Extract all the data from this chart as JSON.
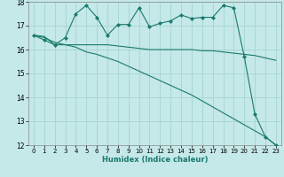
{
  "xlabel": "Humidex (Indice chaleur)",
  "background_color": "#c5e8e8",
  "grid_color": "#a8d8d0",
  "line_color": "#1a7a6e",
  "xlim": [
    -0.5,
    23.5
  ],
  "ylim": [
    12,
    18
  ],
  "yticks": [
    12,
    13,
    14,
    15,
    16,
    17,
    18
  ],
  "xticks": [
    0,
    1,
    2,
    3,
    4,
    5,
    6,
    7,
    8,
    9,
    10,
    11,
    12,
    13,
    14,
    15,
    16,
    17,
    18,
    19,
    20,
    21,
    22,
    23
  ],
  "x": [
    0,
    1,
    2,
    3,
    4,
    5,
    6,
    7,
    8,
    9,
    10,
    11,
    12,
    13,
    14,
    15,
    16,
    17,
    18,
    19,
    20,
    21,
    22,
    23
  ],
  "line1": [
    16.6,
    16.4,
    16.2,
    16.5,
    17.5,
    17.85,
    17.35,
    16.6,
    17.05,
    17.05,
    17.75,
    16.95,
    17.1,
    17.2,
    17.45,
    17.3,
    17.35,
    17.35,
    17.85,
    17.75,
    15.7,
    13.3,
    12.35,
    12.0
  ],
  "line2": [
    16.6,
    16.55,
    16.2,
    16.2,
    16.2,
    16.2,
    16.2,
    16.2,
    16.15,
    16.1,
    16.05,
    16.0,
    16.0,
    16.0,
    16.0,
    16.0,
    15.95,
    15.95,
    15.9,
    15.85,
    15.8,
    15.75,
    15.65,
    15.55
  ],
  "line3": [
    16.6,
    16.5,
    16.3,
    16.2,
    16.1,
    15.9,
    15.8,
    15.65,
    15.5,
    15.3,
    15.1,
    14.9,
    14.7,
    14.5,
    14.3,
    14.1,
    13.85,
    13.6,
    13.35,
    13.1,
    12.85,
    12.6,
    12.35,
    12.0
  ]
}
